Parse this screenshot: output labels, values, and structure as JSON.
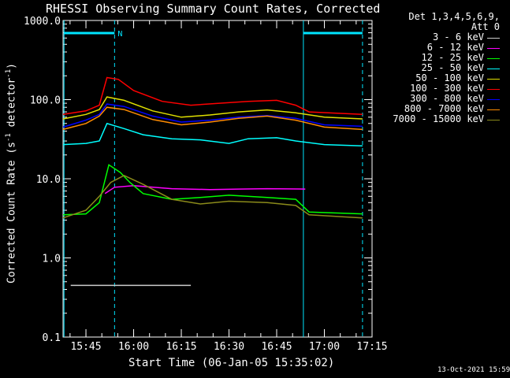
{
  "chart_data": {
    "type": "line",
    "title": "RHESSI Observing Summary Count Rates, Corrected",
    "xlabel": "Start Time (06-Jan-05 15:35:02)",
    "ylabel": "Corrected Count Rate (s^-1 detector^-1)",
    "ylabel_main": "Corrected Count Rate (s",
    "ylabel_sup1": "-1",
    "ylabel_mid": " detector",
    "ylabel_sup2": "-1",
    "ylabel_end": ")",
    "timestamp": "13-Oct-2021 15:59",
    "legend_header_1": "Det 1,3,4,5,6,9,",
    "legend_header_2": "Att 0",
    "flag_label": "N",
    "xlim_minutes": [
      15.63,
      17.25
    ],
    "ylim": [
      0.1,
      1000
    ],
    "y_scale": "log",
    "xticks": [
      {
        "t": 15.75,
        "label": "15:45"
      },
      {
        "t": 16.0,
        "label": "16:00"
      },
      {
        "t": 16.25,
        "label": "16:15"
      },
      {
        "t": 16.5,
        "label": "16:30"
      },
      {
        "t": 16.75,
        "label": "16:45"
      },
      {
        "t": 17.0,
        "label": "17:00"
      },
      {
        "t": 17.25,
        "label": "17:15"
      }
    ],
    "yticks": [
      {
        "v": 0.1,
        "label": "0.1"
      },
      {
        "v": 1,
        "label": "1.0"
      },
      {
        "v": 10,
        "label": "10.0"
      },
      {
        "v": 100,
        "label": "100.0"
      },
      {
        "v": 1000,
        "label": "1000.0"
      }
    ],
    "vertical_lines": [
      {
        "t": 15.635,
        "style": "solid"
      },
      {
        "t": 15.9,
        "style": "dashed"
      },
      {
        "t": 16.89,
        "style": "solid"
      },
      {
        "t": 17.2,
        "style": "dashed"
      }
    ],
    "flag_bars": [
      [
        15.635,
        15.9
      ],
      [
        16.89,
        17.2
      ]
    ],
    "series": [
      {
        "name": "3 - 6 keV",
        "color": "#000000",
        "points": [
          [
            15.67,
            0.45
          ],
          [
            15.75,
            0.45
          ],
          [
            15.9,
            0.45
          ],
          [
            16.3,
            0.45
          ]
        ]
      },
      {
        "name": "6 - 12 keV",
        "color": "#ff00ff",
        "points": [
          [
            15.85,
            6.5
          ],
          [
            15.9,
            7.8
          ],
          [
            16.0,
            8.2
          ],
          [
            16.2,
            7.5
          ],
          [
            16.4,
            7.3
          ],
          [
            16.55,
            7.4
          ],
          [
            16.7,
            7.5
          ],
          [
            16.9,
            7.4
          ]
        ]
      },
      {
        "name": "12 - 25 keV",
        "color": "#00ff00",
        "points": [
          [
            15.63,
            3.5
          ],
          [
            15.75,
            3.6
          ],
          [
            15.82,
            5.0
          ],
          [
            15.87,
            15.0
          ],
          [
            15.93,
            12.0
          ],
          [
            15.98,
            9.0
          ],
          [
            16.05,
            6.5
          ],
          [
            16.2,
            5.5
          ],
          [
            16.35,
            5.8
          ],
          [
            16.5,
            6.2
          ],
          [
            16.7,
            5.8
          ],
          [
            16.85,
            5.5
          ],
          [
            16.92,
            3.8
          ],
          [
            17.2,
            3.6
          ]
        ]
      },
      {
        "name": "25 - 50 keV",
        "color": "#00ffff",
        "points": [
          [
            15.63,
            27
          ],
          [
            15.75,
            28
          ],
          [
            15.82,
            30
          ],
          [
            15.86,
            50
          ],
          [
            15.95,
            43
          ],
          [
            16.05,
            36
          ],
          [
            16.2,
            32
          ],
          [
            16.35,
            31
          ],
          [
            16.5,
            28
          ],
          [
            16.6,
            32
          ],
          [
            16.75,
            33
          ],
          [
            16.85,
            30
          ],
          [
            17.0,
            27
          ],
          [
            17.2,
            26
          ]
        ]
      },
      {
        "name": "50 - 100 keV",
        "color": "#e0e000",
        "points": [
          [
            15.63,
            57
          ],
          [
            15.75,
            65
          ],
          [
            15.82,
            75
          ],
          [
            15.86,
            108
          ],
          [
            15.95,
            98
          ],
          [
            16.1,
            72
          ],
          [
            16.25,
            60
          ],
          [
            16.4,
            64
          ],
          [
            16.55,
            70
          ],
          [
            16.7,
            74
          ],
          [
            16.85,
            68
          ],
          [
            17.0,
            60
          ],
          [
            17.2,
            57
          ]
        ]
      },
      {
        "name": "100 - 300 keV",
        "color": "#ff0000",
        "points": [
          [
            15.63,
            65
          ],
          [
            15.75,
            72
          ],
          [
            15.82,
            85
          ],
          [
            15.86,
            190
          ],
          [
            15.92,
            180
          ],
          [
            16.0,
            130
          ],
          [
            16.15,
            95
          ],
          [
            16.3,
            85
          ],
          [
            16.45,
            90
          ],
          [
            16.6,
            95
          ],
          [
            16.75,
            98
          ],
          [
            16.85,
            85
          ],
          [
            16.92,
            70
          ],
          [
            17.2,
            65
          ]
        ]
      },
      {
        "name": "300 - 800 keV",
        "color": "#0000ff",
        "points": [
          [
            15.63,
            45
          ],
          [
            15.75,
            55
          ],
          [
            15.82,
            65
          ],
          [
            15.86,
            88
          ],
          [
            15.95,
            82
          ],
          [
            16.1,
            62
          ],
          [
            16.25,
            52
          ],
          [
            16.4,
            55
          ],
          [
            16.55,
            60
          ],
          [
            16.7,
            63
          ],
          [
            16.85,
            58
          ],
          [
            17.0,
            48
          ],
          [
            17.2,
            46
          ]
        ]
      },
      {
        "name": "800 - 7000 keV",
        "color": "#ff8c00",
        "points": [
          [
            15.63,
            42
          ],
          [
            15.75,
            50
          ],
          [
            15.82,
            62
          ],
          [
            15.86,
            80
          ],
          [
            15.95,
            75
          ],
          [
            16.1,
            56
          ],
          [
            16.25,
            48
          ],
          [
            16.4,
            52
          ],
          [
            16.55,
            58
          ],
          [
            16.7,
            62
          ],
          [
            16.85,
            55
          ],
          [
            17.0,
            45
          ],
          [
            17.2,
            42
          ]
        ]
      },
      {
        "name": "7000 - 15000 keV",
        "color": "#8b8b1a",
        "points": [
          [
            15.63,
            3.2
          ],
          [
            15.75,
            4.0
          ],
          [
            15.82,
            6.0
          ],
          [
            15.88,
            9.0
          ],
          [
            15.95,
            11.0
          ],
          [
            16.05,
            8.5
          ],
          [
            16.2,
            5.5
          ],
          [
            16.35,
            4.8
          ],
          [
            16.5,
            5.2
          ],
          [
            16.7,
            5.0
          ],
          [
            16.85,
            4.6
          ],
          [
            16.92,
            3.5
          ],
          [
            17.2,
            3.2
          ]
        ]
      }
    ]
  }
}
